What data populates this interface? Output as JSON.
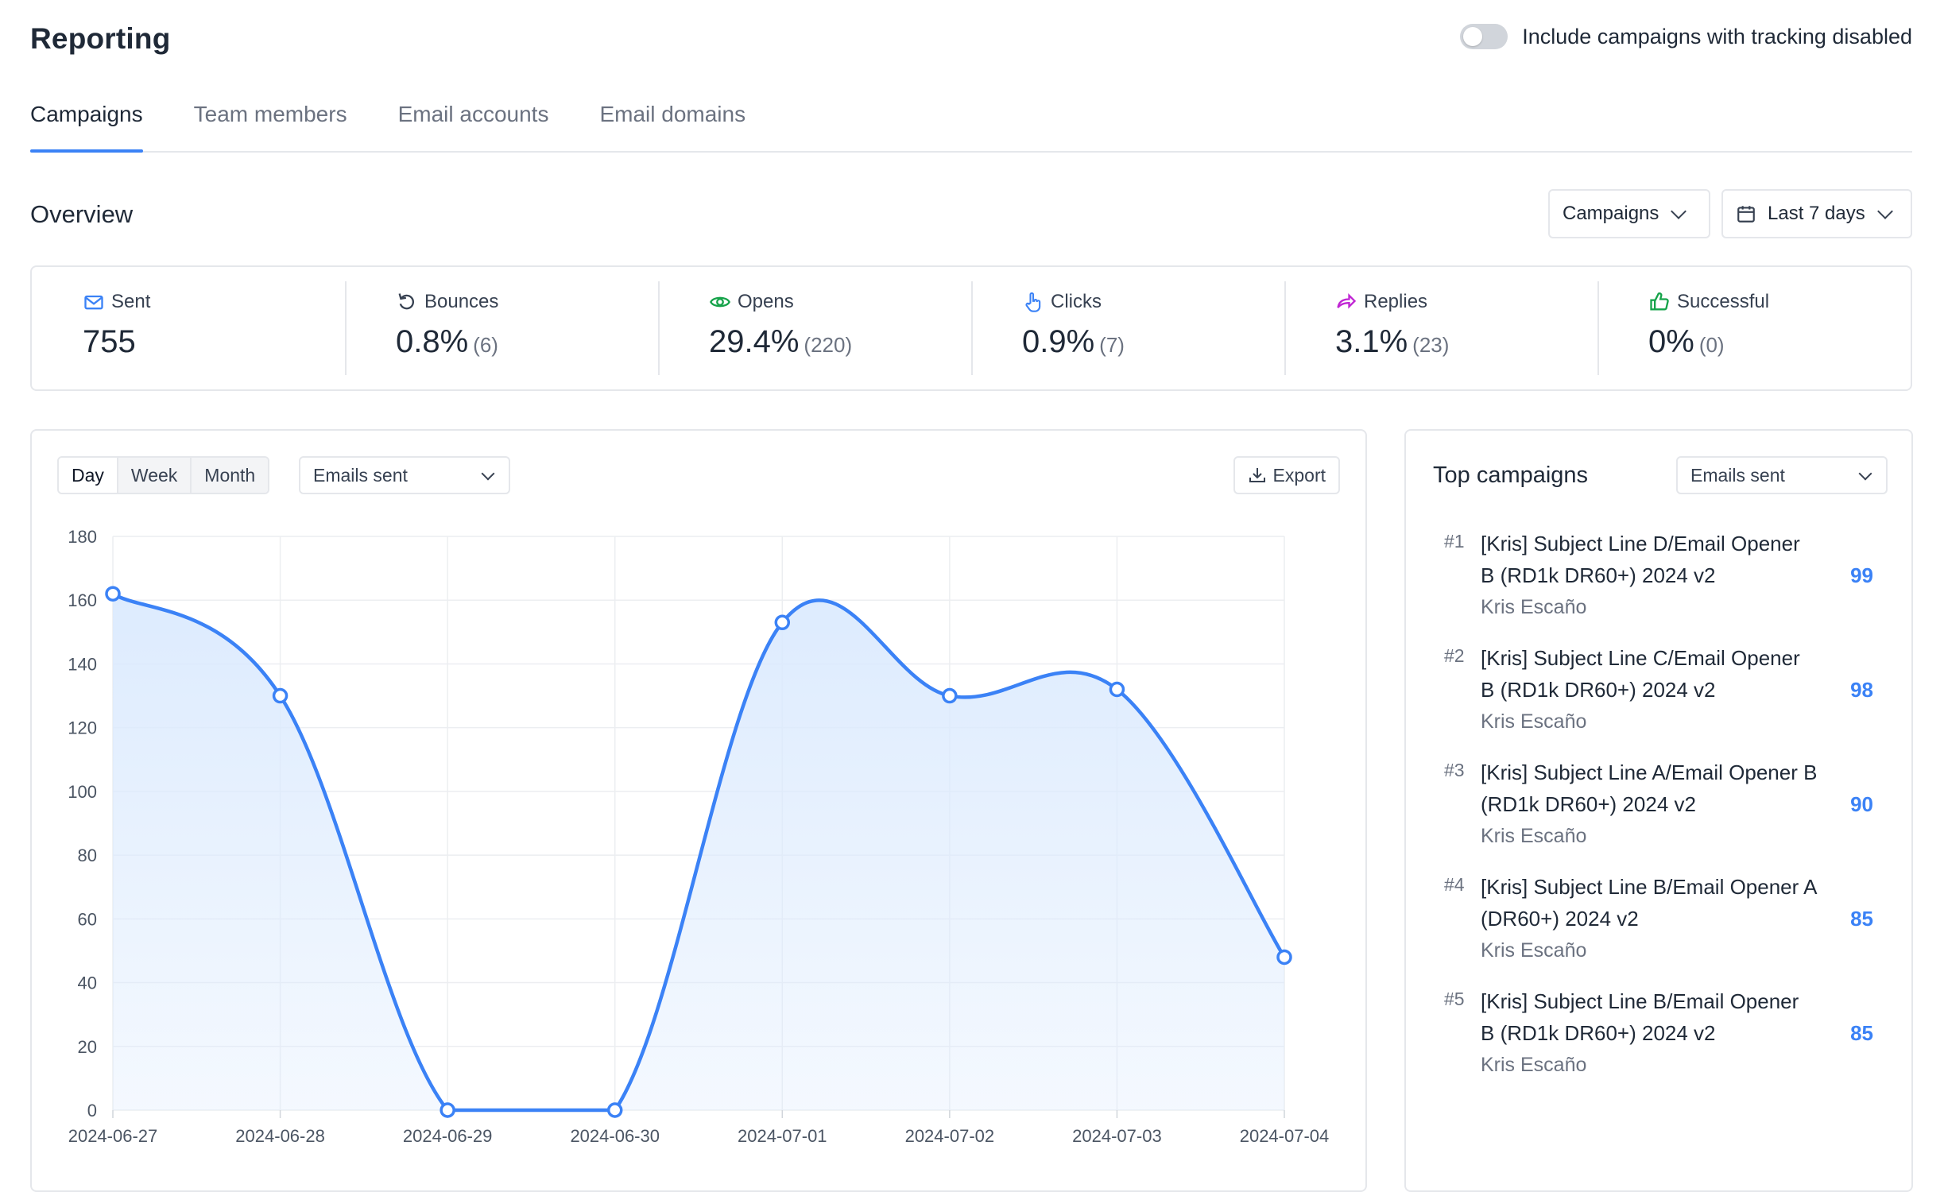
{
  "header": {
    "title": "Reporting",
    "toggle_label": "Include campaigns with tracking disabled"
  },
  "tabs": [
    {
      "label": "Campaigns",
      "active": true
    },
    {
      "label": "Team members"
    },
    {
      "label": "Email accounts"
    },
    {
      "label": "Email domains"
    }
  ],
  "overview": {
    "title": "Overview",
    "filter_label": "Campaigns",
    "range_label": "Last 7 days"
  },
  "stats": [
    {
      "label": "Sent",
      "value": "755",
      "sub": "",
      "icon": "envelope-icon",
      "color": "#3b82f6"
    },
    {
      "label": "Bounces",
      "value": "0.8%",
      "sub": "(6)",
      "icon": "undo-icon",
      "color": "#374151"
    },
    {
      "label": "Opens",
      "value": "29.4%",
      "sub": "(220)",
      "icon": "eye-icon",
      "color": "#16a34a"
    },
    {
      "label": "Clicks",
      "value": "0.9%",
      "sub": "(7)",
      "icon": "pointer-icon",
      "color": "#3b82f6"
    },
    {
      "label": "Replies",
      "value": "3.1%",
      "sub": "(23)",
      "icon": "reply-arrow-icon",
      "color": "#c026d3"
    },
    {
      "label": "Successful",
      "value": "0%",
      "sub": "(0)",
      "icon": "thumbs-up-icon",
      "color": "#16a34a"
    }
  ],
  "chart_panel": {
    "granularity": [
      "Day",
      "Week",
      "Month"
    ],
    "metric_label": "Emails sent",
    "export_label": "Export"
  },
  "chart_data": {
    "type": "area",
    "x": [
      "2024-06-27",
      "2024-06-28",
      "2024-06-29",
      "2024-06-30",
      "2024-07-01",
      "2024-07-02",
      "2024-07-03",
      "2024-07-04"
    ],
    "values": [
      162,
      130,
      0,
      0,
      153,
      130,
      132,
      48
    ],
    "ylim": [
      0,
      180
    ],
    "yticks": [
      0,
      20,
      40,
      60,
      80,
      100,
      120,
      140,
      160,
      180
    ],
    "title": "",
    "xlabel": "",
    "ylabel": "",
    "grid": true,
    "line_color": "#3b82f6",
    "fill_color": "#dbeafe"
  },
  "top_campaigns": {
    "title": "Top campaigns",
    "metric_label": "Emails sent",
    "items": [
      {
        "rank": "#1",
        "name": "[Kris] Subject Line D/Email Opener B (RD1k DR60+) 2024 v2",
        "owner": "Kris Escaño",
        "count": "99"
      },
      {
        "rank": "#2",
        "name": "[Kris] Subject Line C/Email Opener B (RD1k DR60+) 2024 v2",
        "owner": "Kris Escaño",
        "count": "98"
      },
      {
        "rank": "#3",
        "name": "[Kris] Subject Line A/Email Opener B (RD1k DR60+) 2024 v2",
        "owner": "Kris Escaño",
        "count": "90"
      },
      {
        "rank": "#4",
        "name": "[Kris] Subject Line B/Email Opener A (DR60+) 2024 v2",
        "owner": "Kris Escaño",
        "count": "85"
      },
      {
        "rank": "#5",
        "name": "[Kris] Subject Line B/Email Opener B (RD1k DR60+) 2024 v2",
        "owner": "Kris Escaño",
        "count": "85"
      }
    ]
  }
}
